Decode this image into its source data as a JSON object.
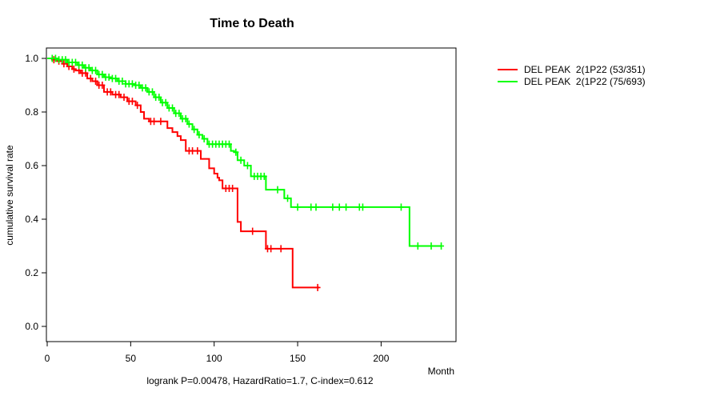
{
  "title": "Time to Death",
  "footer": "logrank P=0.00478, HazardRatio=1.7, C-index=0.612",
  "legend": {
    "items": [
      {
        "label": "DEL PEAK  2(1P22 (53/351)",
        "color": "#ff0000"
      },
      {
        "label": "DEL PEAK  2(1P22 (75/693)",
        "color": "#00ff00"
      }
    ]
  },
  "chart_data": {
    "type": "line",
    "subtype": "kaplan-meier-step",
    "title": "Time to Death",
    "xlabel": "Month",
    "ylabel": "cumulative survival rate",
    "xlim": [
      0,
      245
    ],
    "ylim": [
      0,
      1.04
    ],
    "xtick_values": [
      0,
      50,
      100,
      150,
      200
    ],
    "xtick_labels": [
      "0",
      "50",
      "100",
      "150",
      "200"
    ],
    "ytick_values": [
      0.0,
      0.2,
      0.4,
      0.6,
      0.8,
      1.0
    ],
    "ytick_labels": [
      "0.0",
      "0.2",
      "0.4",
      "0.6",
      "0.8",
      "1.0"
    ],
    "grid": false,
    "legend_position": "right-outside",
    "annotation": "logrank P=0.00478, HazardRatio=1.7, C-index=0.612",
    "series": [
      {
        "name": "DEL PEAK  2(1P22 (53/351)",
        "color": "#ff0000",
        "events_total": "53/351",
        "steps": [
          [
            0,
            1.0
          ],
          [
            3,
            0.995
          ],
          [
            6,
            0.99
          ],
          [
            9,
            0.98
          ],
          [
            12,
            0.97
          ],
          [
            15,
            0.96
          ],
          [
            17,
            0.955
          ],
          [
            20,
            0.945
          ],
          [
            24,
            0.925
          ],
          [
            27,
            0.915
          ],
          [
            30,
            0.9
          ],
          [
            34,
            0.875
          ],
          [
            39,
            0.865
          ],
          [
            44,
            0.855
          ],
          [
            48,
            0.84
          ],
          [
            53,
            0.825
          ],
          [
            56,
            0.8
          ],
          [
            58,
            0.775
          ],
          [
            61,
            0.765
          ],
          [
            72,
            0.74
          ],
          [
            75,
            0.725
          ],
          [
            78,
            0.71
          ],
          [
            80,
            0.695
          ],
          [
            83,
            0.655
          ],
          [
            92,
            0.625
          ],
          [
            97,
            0.59
          ],
          [
            100,
            0.57
          ],
          [
            102,
            0.555
          ],
          [
            103,
            0.545
          ],
          [
            105,
            0.515
          ],
          [
            114,
            0.39
          ],
          [
            116,
            0.355
          ],
          [
            131,
            0.29
          ],
          [
            147,
            0.145
          ]
        ],
        "end_month": 163,
        "censor_months": [
          4,
          7,
          10,
          13,
          16,
          19,
          21,
          23,
          26,
          29,
          31,
          33,
          36,
          38,
          41,
          43,
          46,
          49,
          51,
          54,
          62,
          64,
          68,
          85,
          87,
          90,
          107,
          109,
          111,
          123,
          132,
          134,
          140,
          162
        ]
      },
      {
        "name": "DEL PEAK  2(1P22 (75/693)",
        "color": "#00ff00",
        "events_total": "75/693",
        "steps": [
          [
            0,
            1.0
          ],
          [
            6,
            0.995
          ],
          [
            12,
            0.985
          ],
          [
            18,
            0.975
          ],
          [
            22,
            0.965
          ],
          [
            26,
            0.955
          ],
          [
            30,
            0.94
          ],
          [
            34,
            0.93
          ],
          [
            38,
            0.925
          ],
          [
            42,
            0.915
          ],
          [
            47,
            0.905
          ],
          [
            52,
            0.9
          ],
          [
            56,
            0.89
          ],
          [
            60,
            0.875
          ],
          [
            64,
            0.855
          ],
          [
            68,
            0.835
          ],
          [
            72,
            0.815
          ],
          [
            76,
            0.795
          ],
          [
            80,
            0.775
          ],
          [
            84,
            0.755
          ],
          [
            87,
            0.735
          ],
          [
            90,
            0.715
          ],
          [
            93,
            0.7
          ],
          [
            96,
            0.68
          ],
          [
            110,
            0.655
          ],
          [
            112,
            0.65
          ],
          [
            114,
            0.62
          ],
          [
            118,
            0.6
          ],
          [
            122,
            0.56
          ],
          [
            131,
            0.51
          ],
          [
            142,
            0.478
          ],
          [
            146,
            0.445
          ],
          [
            217,
            0.3
          ]
        ],
        "end_month": 236,
        "censor_months": [
          3,
          5,
          7,
          9,
          11,
          13,
          15,
          17,
          19,
          21,
          23,
          25,
          27,
          29,
          31,
          33,
          35,
          37,
          39,
          41,
          43,
          45,
          47,
          49,
          51,
          53,
          55,
          57,
          59,
          61,
          63,
          65,
          67,
          69,
          71,
          73,
          75,
          77,
          79,
          81,
          83,
          85,
          88,
          91,
          94,
          97,
          99,
          101,
          103,
          105,
          107,
          109,
          113,
          116,
          120,
          124,
          126,
          128,
          130,
          138,
          144,
          150,
          158,
          161,
          171,
          175,
          179,
          187,
          189,
          212,
          222,
          230,
          236
        ]
      }
    ]
  }
}
